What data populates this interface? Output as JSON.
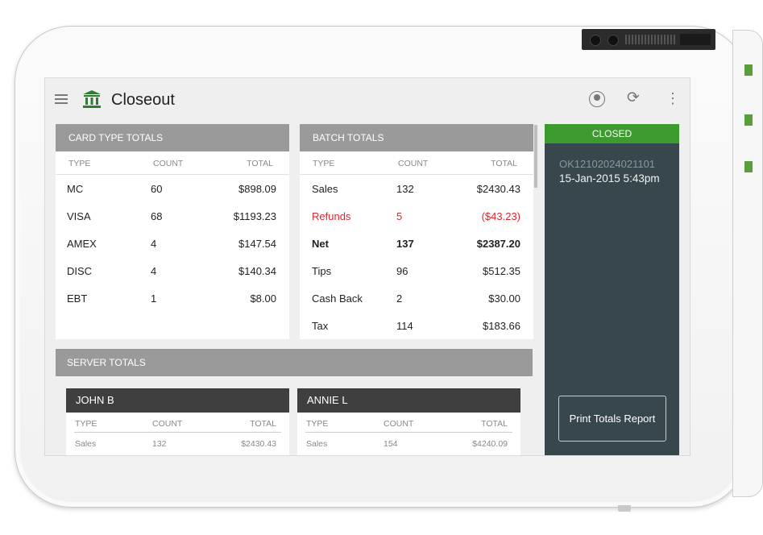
{
  "app": {
    "title": "Closeout"
  },
  "icons": {
    "menu": "hamburger-menu-icon",
    "logo": "bank-icon",
    "account": "account-circle-icon",
    "refresh": "refresh-icon",
    "more": "more-vert-icon"
  },
  "colors": {
    "accent_green": "#3d9a2f",
    "header_gray": "#9a9a9a",
    "dark_panel": "#37474b",
    "negative_red": "#e0242c"
  },
  "card_type_totals": {
    "title": "CARD TYPE TOTALS",
    "columns": [
      "TYPE",
      "COUNT",
      "TOTAL"
    ],
    "rows": [
      [
        "MC",
        "60",
        "$898.09"
      ],
      [
        "VISA",
        "68",
        "$1193.23"
      ],
      [
        "AMEX",
        "4",
        "$147.54"
      ],
      [
        "DISC",
        "4",
        "$140.34"
      ],
      [
        "EBT",
        "1",
        "$8.00"
      ]
    ]
  },
  "batch_totals": {
    "title": "BATCH TOTALS",
    "columns": [
      "TYPE",
      "COUNT",
      "TOTAL"
    ],
    "rows": [
      [
        "Sales",
        "132",
        "$2430.43"
      ],
      [
        "Refunds",
        "5",
        "($43.23)"
      ],
      [
        "Net",
        "137",
        "$2387.20"
      ],
      [
        "Tips",
        "96",
        "$512.35"
      ],
      [
        "Cash Back",
        "2",
        "$30.00"
      ],
      [
        "Tax",
        "114",
        "$183.66"
      ]
    ]
  },
  "batch_status": {
    "status": "CLOSED",
    "batch_id": "OK12102024021101",
    "datetime": "15-Jan-2015 5:43pm",
    "print_label": "Print Totals Report"
  },
  "server_totals": {
    "title": "SERVER TOTALS",
    "servers": [
      {
        "name": "JOHN B",
        "columns": [
          "TYPE",
          "COUNT",
          "TOTAL"
        ],
        "row": [
          "Sales",
          "132",
          "$2430.43"
        ]
      },
      {
        "name": "ANNIE L",
        "columns": [
          "TYPE",
          "COUNT",
          "TOTAL"
        ],
        "row": [
          "Sales",
          "154",
          "$4240.09"
        ]
      }
    ]
  }
}
